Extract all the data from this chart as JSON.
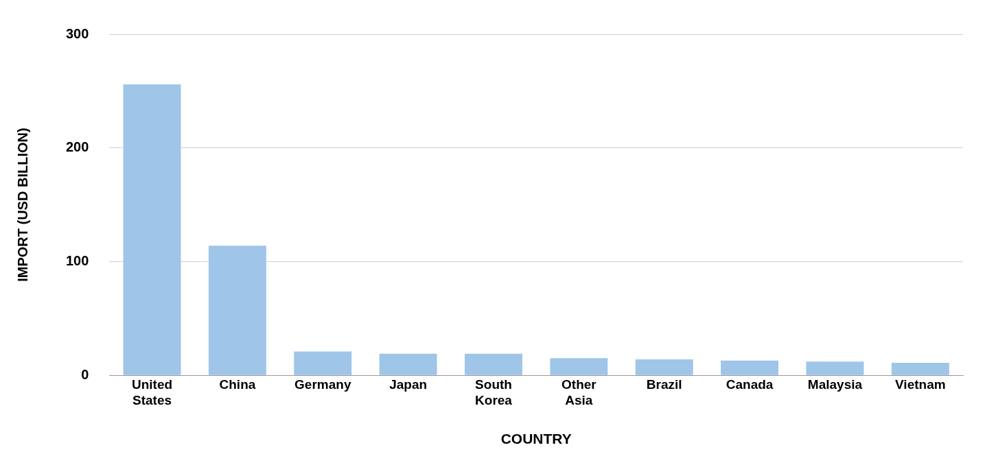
{
  "chart_data": {
    "type": "bar",
    "xlabel": "COUNTRY",
    "ylabel": "IMPORT (USD BILLION)",
    "categories": [
      "United States",
      "China",
      "Germany",
      "Japan",
      "South Korea",
      "Other Asia",
      "Brazil",
      "Canada",
      "Malaysia",
      "Vietnam"
    ],
    "values": [
      256,
      114,
      21,
      19,
      19,
      15,
      14,
      13,
      12,
      11
    ],
    "color": "#9fc5e8",
    "ylim": [
      0,
      300
    ],
    "yticks": [
      0,
      100,
      200,
      300
    ],
    "grid": "y",
    "legend": false
  }
}
